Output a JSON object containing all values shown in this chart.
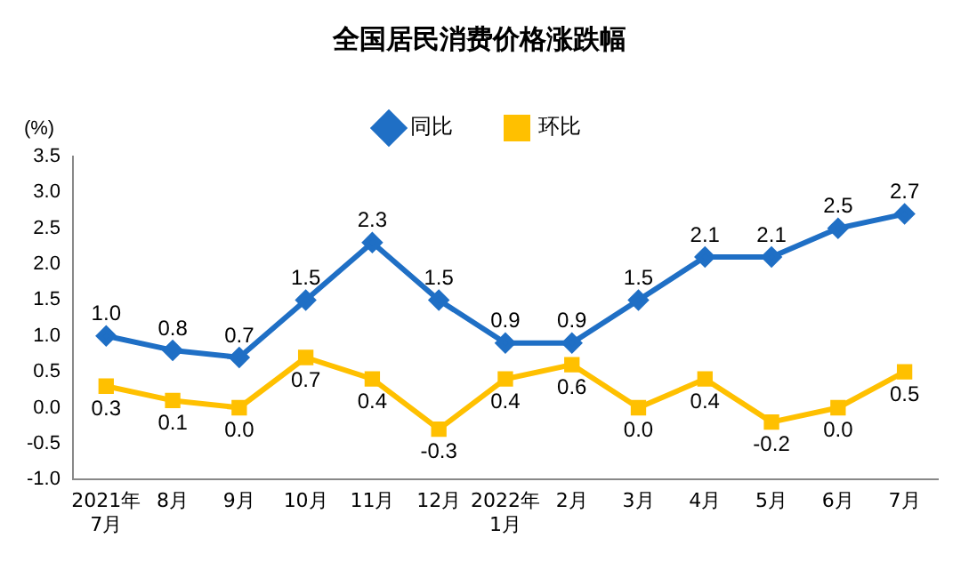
{
  "chart_data": {
    "type": "line",
    "title": "全国居民消费价格涨跌幅",
    "ylabel": "(%)",
    "categories": [
      "2021年\n7月",
      "8月",
      "9月",
      "10月",
      "11月",
      "12月",
      "2022年\n1月",
      "2月",
      "3月",
      "4月",
      "5月",
      "6月",
      "7月"
    ],
    "series": [
      {
        "name": "同比",
        "color": "#1f6fc5",
        "marker": "diamond",
        "values": [
          1.0,
          0.8,
          0.7,
          1.5,
          2.3,
          1.5,
          0.9,
          0.9,
          1.5,
          2.1,
          2.1,
          2.5,
          2.7
        ],
        "value_labels": [
          "1.0",
          "0.8",
          "0.7",
          "1.5",
          "2.3",
          "1.5",
          "0.9",
          "0.9",
          "1.5",
          "2.1",
          "2.1",
          "2.5",
          "2.7"
        ]
      },
      {
        "name": "环比",
        "color": "#ffc000",
        "marker": "square",
        "values": [
          0.3,
          0.1,
          0.0,
          0.7,
          0.4,
          -0.3,
          0.4,
          0.6,
          0.0,
          0.4,
          -0.2,
          0.0,
          0.5
        ],
        "value_labels": [
          "0.3",
          "0.1",
          "0.0",
          "0.7",
          "0.4",
          "-0.3",
          "0.4",
          "0.6",
          "0.0",
          "0.4",
          "-0.2",
          "0.0",
          "0.5"
        ]
      }
    ],
    "ylim": [
      -1,
      3.5
    ],
    "yticks": [
      {
        "value": -1,
        "label": "-1.0"
      },
      -0.5,
      {
        "value": 0,
        "label": "0.0"
      },
      0.5,
      {
        "value": 1,
        "label": "1.0"
      },
      1.5,
      {
        "value": 2,
        "label": "2.0"
      },
      2.5,
      {
        "value": 3,
        "label": "3.0"
      },
      3.5
    ],
    "grid": false,
    "legend": "top",
    "line_style": "solid"
  }
}
